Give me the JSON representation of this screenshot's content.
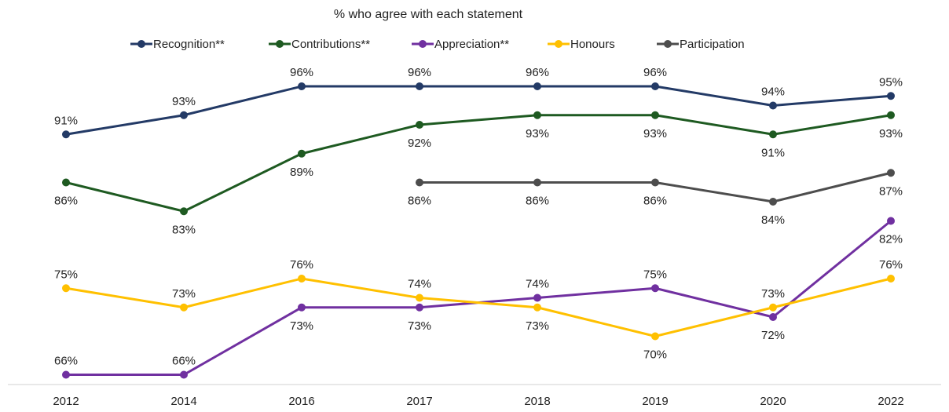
{
  "chart_data": {
    "type": "line",
    "title": "% who agree with each statement",
    "categories": [
      "2012",
      "2014",
      "2016",
      "2017",
      "2018",
      "2019",
      "2020",
      "2022"
    ],
    "ylim": [
      60,
      100
    ],
    "grid": false,
    "legend_position": "top",
    "series": [
      {
        "name": "Recognition**",
        "color": "#233a66",
        "values": [
          91,
          93,
          96,
          96,
          96,
          96,
          94,
          95
        ],
        "labels": [
          "91%",
          "93%",
          "96%",
          "96%",
          "96%",
          "96%",
          "94%",
          "95%"
        ],
        "label_pos": [
          "above",
          "above",
          "above",
          "above",
          "above",
          "above",
          "above",
          "above"
        ]
      },
      {
        "name": "Contributions**",
        "color": "#1e5a21",
        "values": [
          86,
          83,
          89,
          92,
          93,
          93,
          91,
          93
        ],
        "labels": [
          "86%",
          "83%",
          "89%",
          "92%",
          "93%",
          "93%",
          "91%",
          "93%"
        ],
        "label_pos": [
          "below",
          "below",
          "below",
          "below",
          "below",
          "below",
          "below",
          "below"
        ]
      },
      {
        "name": "Appreciation**",
        "color": "#7030a0",
        "values": [
          66,
          66,
          73,
          73,
          74,
          75,
          72,
          82
        ],
        "labels": [
          "66%",
          "66%",
          "73%",
          "73%",
          "74%",
          "75%",
          "72%",
          "82%"
        ],
        "label_pos": [
          "above",
          "above",
          "below",
          "below",
          "above",
          "above",
          "below",
          "below"
        ]
      },
      {
        "name": "Honours",
        "color": "#ffc000",
        "values": [
          75,
          73,
          76,
          74,
          73,
          70,
          73,
          76
        ],
        "labels": [
          "75%",
          "73%",
          "76%",
          "74%",
          "73%",
          "70%",
          "73%",
          "76%"
        ],
        "label_pos": [
          "above",
          "above",
          "above",
          "above",
          "below",
          "below",
          "above",
          "above"
        ]
      },
      {
        "name": "Participation",
        "color": "#4d4d4d",
        "values": [
          null,
          null,
          null,
          86,
          86,
          86,
          84,
          87
        ],
        "labels": [
          null,
          null,
          null,
          "86%",
          "86%",
          "86%",
          "84%",
          "87%"
        ],
        "label_pos": [
          null,
          null,
          null,
          "below",
          "below",
          "below",
          "below",
          "below"
        ]
      }
    ]
  }
}
